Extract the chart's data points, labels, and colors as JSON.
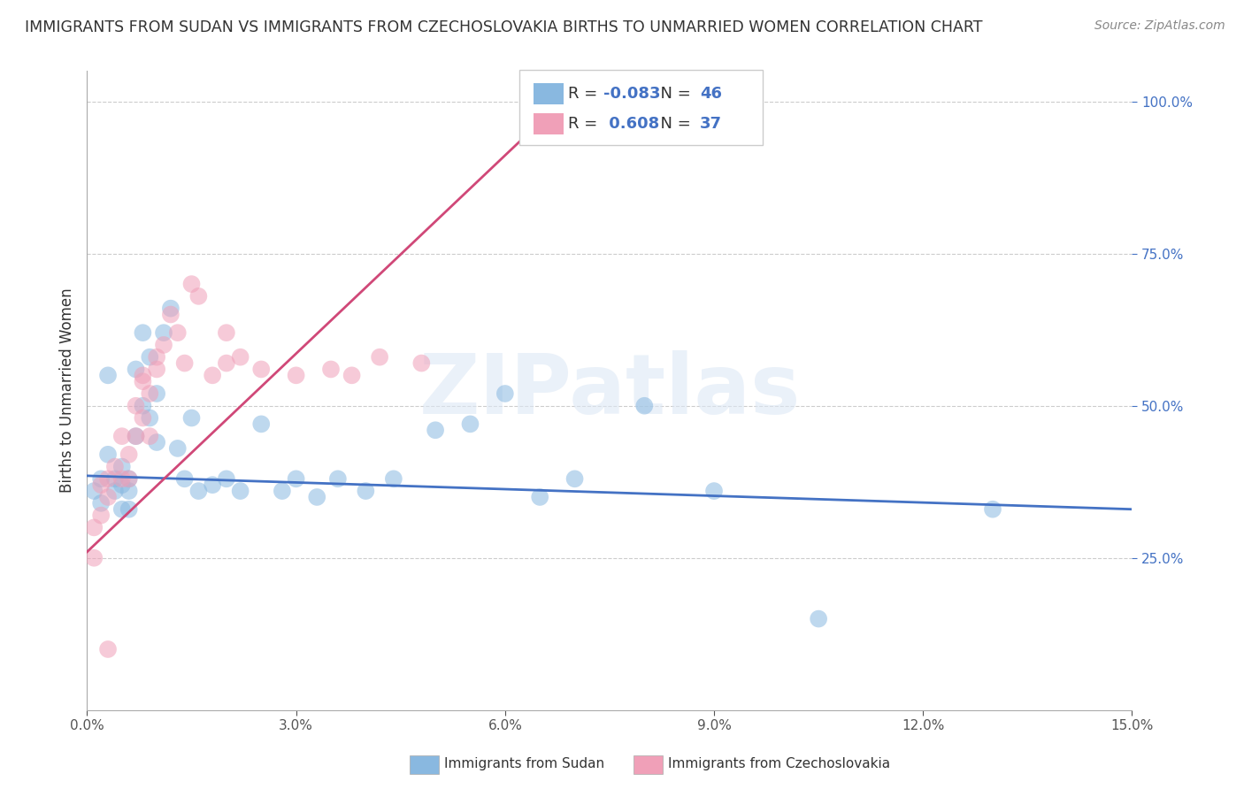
{
  "title": "IMMIGRANTS FROM SUDAN VS IMMIGRANTS FROM CZECHOSLOVAKIA BIRTHS TO UNMARRIED WOMEN CORRELATION CHART",
  "source": "Source: ZipAtlas.com",
  "xlabel_sudan": "Immigrants from Sudan",
  "xlabel_czechoslovakia": "Immigrants from Czechoslovakia",
  "ylabel": "Births to Unmarried Women",
  "xlim": [
    0.0,
    0.15
  ],
  "ylim": [
    0.0,
    1.05
  ],
  "xticks": [
    0.0,
    0.03,
    0.06,
    0.09,
    0.12,
    0.15
  ],
  "xtick_labels": [
    "0.0%",
    "3.0%",
    "6.0%",
    "9.0%",
    "12.0%",
    "15.0%"
  ],
  "yticks": [
    0.25,
    0.5,
    0.75,
    1.0
  ],
  "ytick_labels": [
    "25.0%",
    "50.0%",
    "75.0%",
    "100.0%"
  ],
  "blue_R": -0.083,
  "blue_N": 46,
  "pink_R": 0.608,
  "pink_N": 37,
  "blue_color": "#89b8e0",
  "pink_color": "#f0a0b8",
  "blue_line_color": "#4472c4",
  "pink_line_color": "#d04878",
  "watermark_text": "ZIPatlas",
  "blue_scatter_x": [
    0.001,
    0.002,
    0.002,
    0.003,
    0.003,
    0.004,
    0.004,
    0.005,
    0.005,
    0.005,
    0.006,
    0.006,
    0.006,
    0.007,
    0.007,
    0.008,
    0.008,
    0.009,
    0.009,
    0.01,
    0.01,
    0.011,
    0.012,
    0.013,
    0.014,
    0.015,
    0.016,
    0.018,
    0.02,
    0.022,
    0.025,
    0.028,
    0.03,
    0.033,
    0.036,
    0.04,
    0.044,
    0.05,
    0.055,
    0.06,
    0.065,
    0.07,
    0.08,
    0.09,
    0.105,
    0.13
  ],
  "blue_scatter_y": [
    0.36,
    0.34,
    0.38,
    0.55,
    0.42,
    0.38,
    0.36,
    0.4,
    0.37,
    0.33,
    0.38,
    0.36,
    0.33,
    0.56,
    0.45,
    0.62,
    0.5,
    0.58,
    0.48,
    0.52,
    0.44,
    0.62,
    0.66,
    0.43,
    0.38,
    0.48,
    0.36,
    0.37,
    0.38,
    0.36,
    0.47,
    0.36,
    0.38,
    0.35,
    0.38,
    0.36,
    0.38,
    0.46,
    0.47,
    0.52,
    0.35,
    0.38,
    0.5,
    0.36,
    0.15,
    0.33
  ],
  "pink_scatter_x": [
    0.001,
    0.001,
    0.002,
    0.002,
    0.003,
    0.003,
    0.004,
    0.005,
    0.005,
    0.006,
    0.006,
    0.007,
    0.007,
    0.008,
    0.008,
    0.009,
    0.009,
    0.01,
    0.011,
    0.012,
    0.013,
    0.014,
    0.015,
    0.016,
    0.018,
    0.02,
    0.022,
    0.025,
    0.03,
    0.035,
    0.038,
    0.042,
    0.048,
    0.02,
    0.01,
    0.008,
    0.003
  ],
  "pink_scatter_y": [
    0.3,
    0.25,
    0.37,
    0.32,
    0.38,
    0.35,
    0.4,
    0.45,
    0.38,
    0.42,
    0.38,
    0.5,
    0.45,
    0.55,
    0.48,
    0.52,
    0.45,
    0.58,
    0.6,
    0.65,
    0.62,
    0.57,
    0.7,
    0.68,
    0.55,
    0.62,
    0.58,
    0.56,
    0.55,
    0.56,
    0.55,
    0.58,
    0.57,
    0.57,
    0.56,
    0.54,
    0.1
  ],
  "grid_color": "#cccccc",
  "background_color": "#ffffff",
  "blue_line_x": [
    0.0,
    0.15
  ],
  "blue_line_y": [
    0.385,
    0.33
  ],
  "pink_line_x": [
    0.0,
    0.07
  ],
  "pink_line_y": [
    0.26,
    1.02
  ]
}
